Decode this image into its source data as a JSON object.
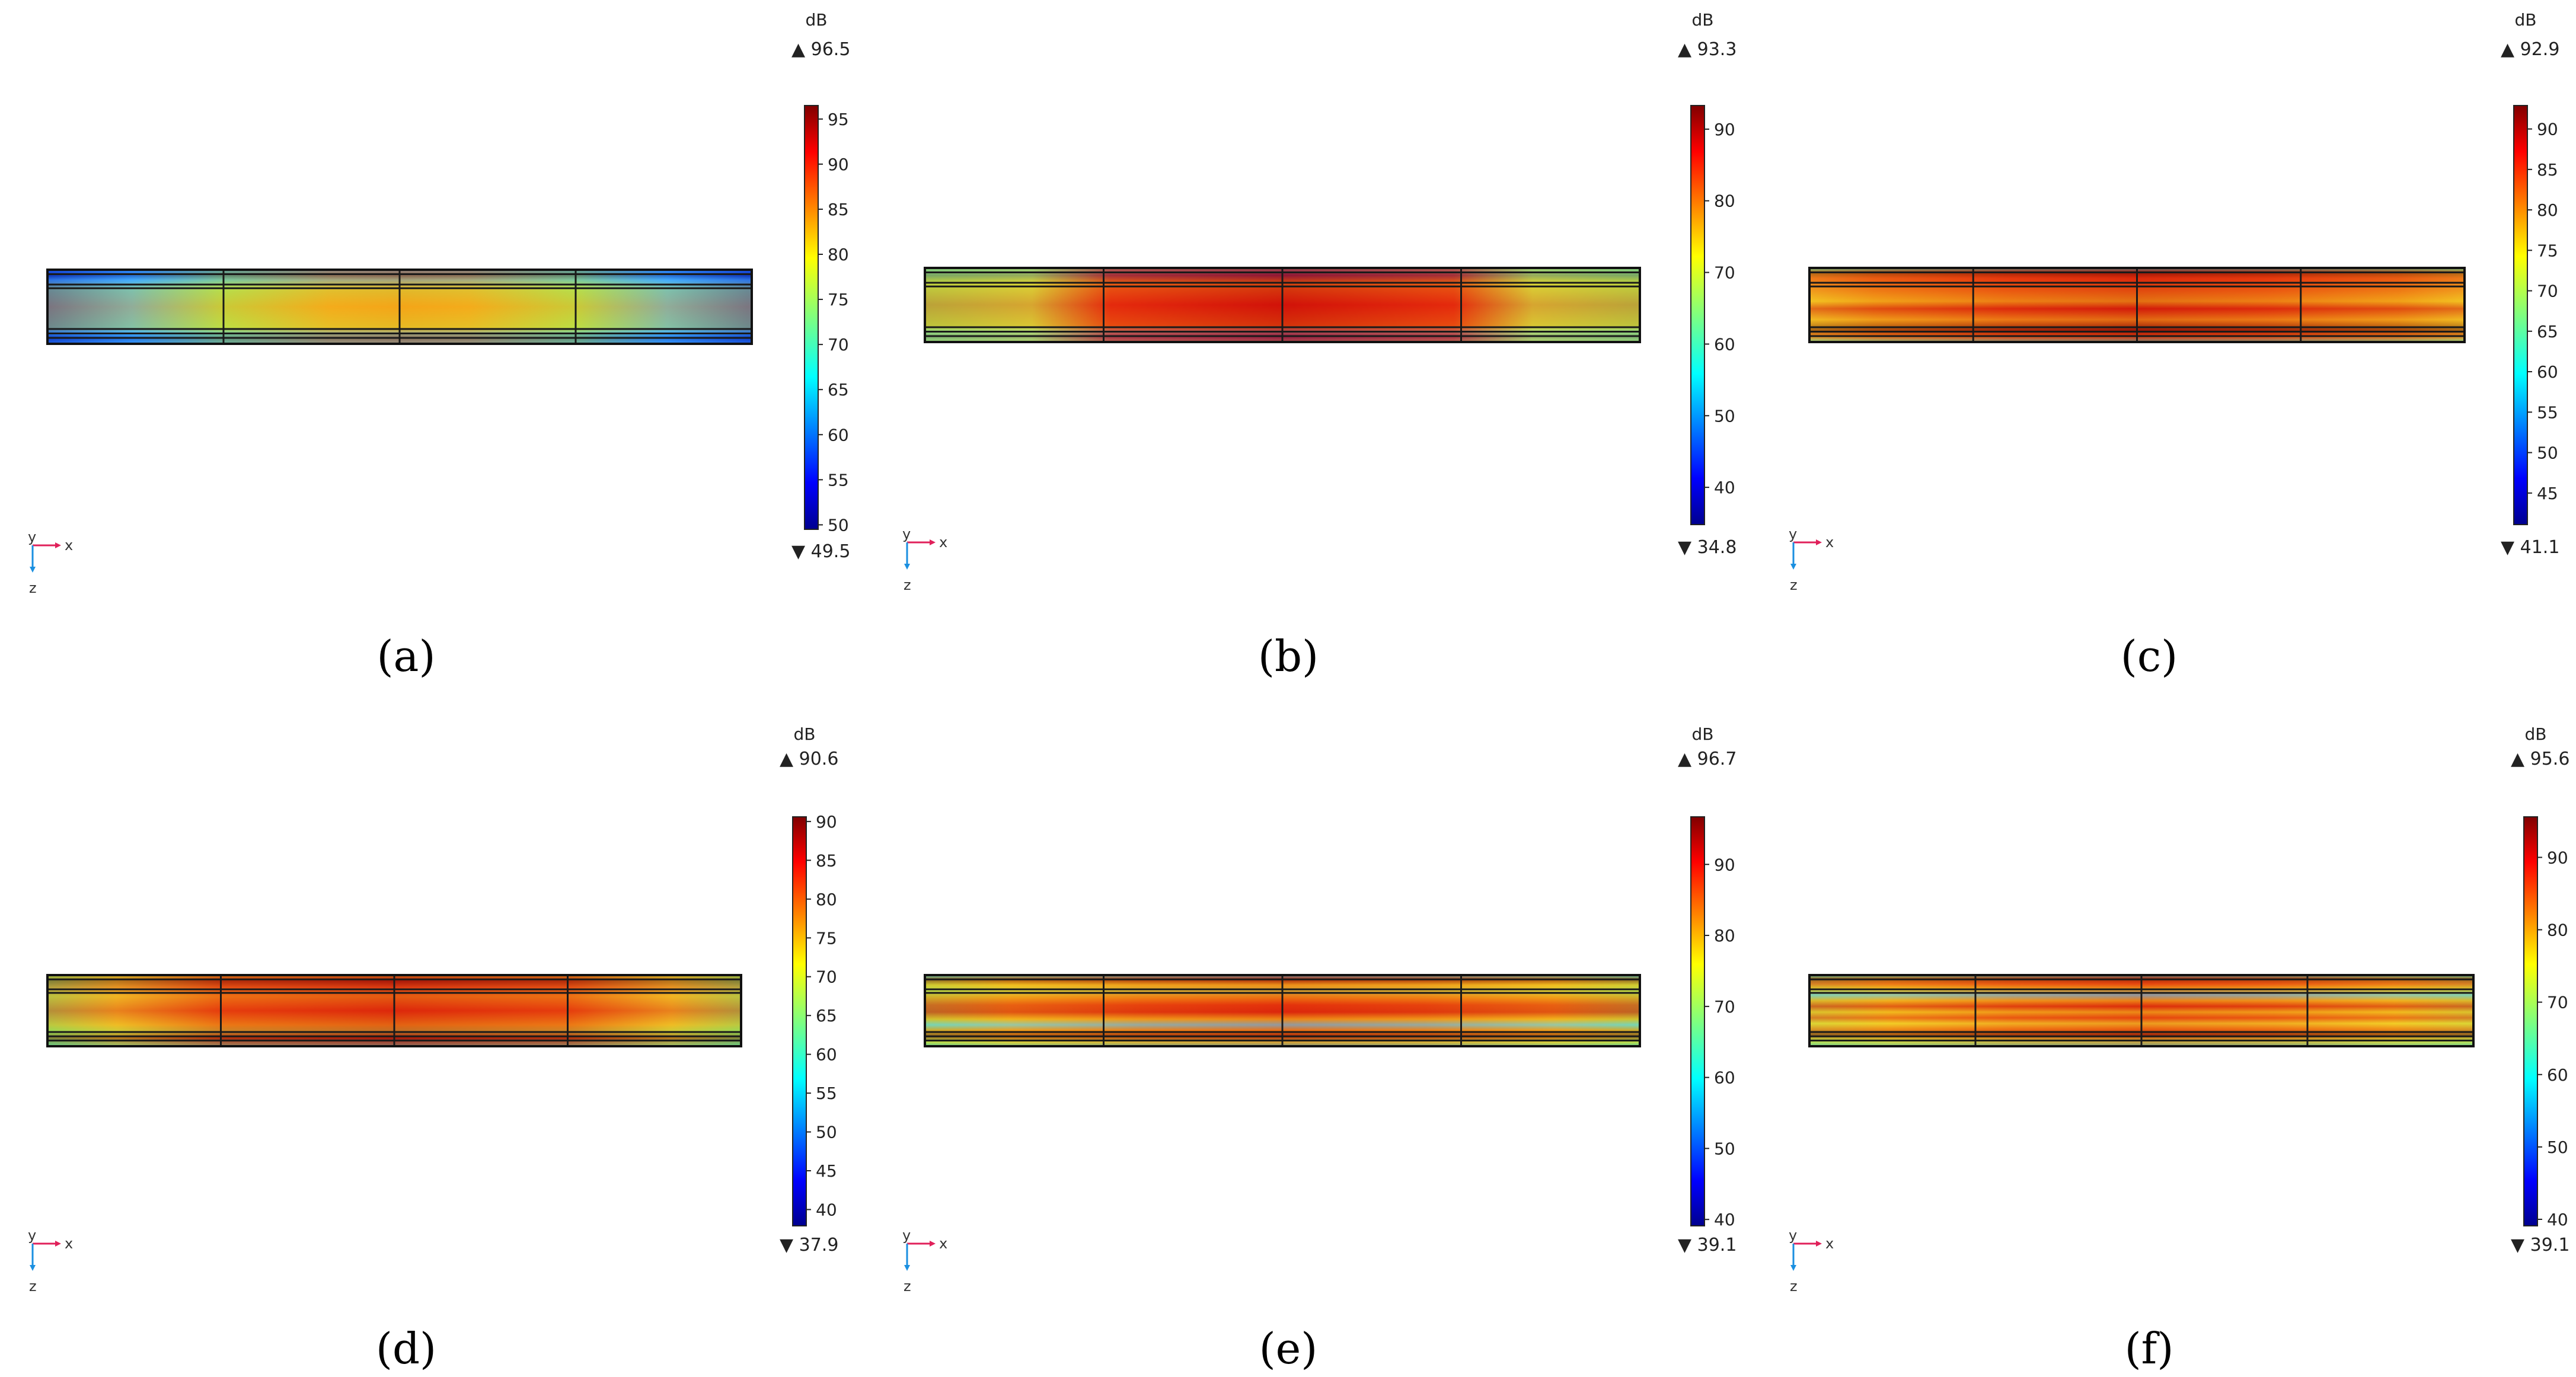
{
  "figure_labels": {
    "a": "(a)",
    "b": "(b)",
    "c": "(c)",
    "d": "(d)",
    "e": "(e)",
    "f": "(f)"
  },
  "axes_triad": {
    "y": "y",
    "x": "x",
    "z": "z"
  },
  "chart_data": [
    {
      "type": "heatmap",
      "id": "a",
      "unit": "dB",
      "max_label": "96.5",
      "min_label": "49.5",
      "range": [
        49.5,
        96.5
      ],
      "ticks": [
        50,
        55,
        60,
        65,
        70,
        75,
        80,
        85,
        90,
        95
      ],
      "field_pattern": "center-hot-bowl",
      "colors": [
        "#00008f",
        "#0000ff",
        "#00ffff",
        "#ffff00",
        "#ff0000",
        "#800000"
      ]
    },
    {
      "type": "heatmap",
      "id": "b",
      "unit": "dB",
      "max_label": "93.3",
      "min_label": "34.8",
      "range": [
        34.8,
        93.3
      ],
      "ticks": [
        40,
        50,
        60,
        70,
        80,
        90
      ],
      "field_pattern": "center-hot-wide",
      "colors": [
        "#00008f",
        "#0000ff",
        "#00ffff",
        "#ffff00",
        "#ff0000",
        "#800000"
      ]
    },
    {
      "type": "heatmap",
      "id": "c",
      "unit": "dB",
      "max_label": "92.9",
      "min_label": "41.1",
      "range": [
        41.1,
        92.9
      ],
      "ticks": [
        45,
        50,
        55,
        60,
        65,
        70,
        75,
        80,
        85,
        90
      ],
      "field_pattern": "horizontal-bands",
      "colors": [
        "#00008f",
        "#0000ff",
        "#00ffff",
        "#ffff00",
        "#ff0000",
        "#800000"
      ]
    },
    {
      "type": "heatmap",
      "id": "d",
      "unit": "dB",
      "max_label": "90.6",
      "min_label": "37.9",
      "range": [
        37.9,
        90.6
      ],
      "ticks": [
        40,
        45,
        50,
        55,
        60,
        65,
        70,
        75,
        80,
        85,
        90
      ],
      "field_pattern": "center-hot-banded",
      "colors": [
        "#00008f",
        "#0000ff",
        "#00ffff",
        "#ffff00",
        "#ff0000",
        "#800000"
      ]
    },
    {
      "type": "heatmap",
      "id": "e",
      "unit": "dB",
      "max_label": "96.7",
      "min_label": "39.1",
      "range": [
        39.1,
        96.7
      ],
      "ticks": [
        40,
        50,
        60,
        70,
        80,
        90
      ],
      "field_pattern": "multi-bands",
      "colors": [
        "#00008f",
        "#0000ff",
        "#00ffff",
        "#ffff00",
        "#ff0000",
        "#800000"
      ]
    },
    {
      "type": "heatmap",
      "id": "f",
      "unit": "dB",
      "max_label": "95.6",
      "min_label": "39.1",
      "range": [
        39.1,
        95.6
      ],
      "ticks": [
        40,
        50,
        60,
        70,
        80,
        90
      ],
      "field_pattern": "multi-bands-fine",
      "colors": [
        "#00008f",
        "#0000ff",
        "#00ffff",
        "#ffff00",
        "#ff0000",
        "#800000"
      ]
    }
  ]
}
